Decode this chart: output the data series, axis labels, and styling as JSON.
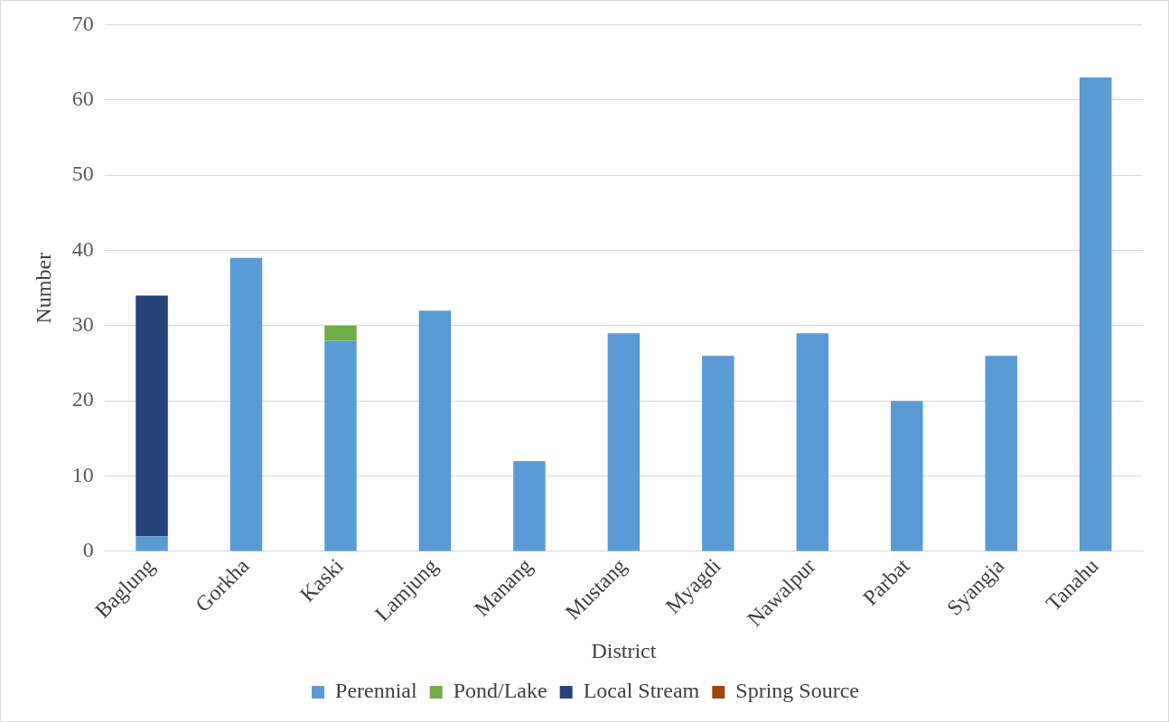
{
  "chart_data": {
    "type": "bar",
    "stacked": true,
    "xlabel": "District",
    "ylabel": "Number",
    "categories": [
      "Baglung",
      "Gorkha",
      "Kaski",
      "Lamjung",
      "Manang",
      "Mustang",
      "Myagdi",
      "Nawalpur",
      "Parbat",
      "Syangja",
      "Tanahu"
    ],
    "series": [
      {
        "name": "Perennial",
        "color": "#5b9bd5",
        "values": [
          2,
          39,
          28,
          32,
          12,
          29,
          26,
          29,
          20,
          26,
          63
        ]
      },
      {
        "name": "Pond/Lake",
        "color": "#70ad47",
        "values": [
          0,
          0,
          2,
          0,
          0,
          0,
          0,
          0,
          0,
          0,
          0
        ]
      },
      {
        "name": "Local Stream",
        "color": "#264478",
        "values": [
          32,
          0,
          0,
          0,
          0,
          0,
          0,
          0,
          0,
          0,
          0
        ]
      },
      {
        "name": "Spring Source",
        "color": "#9e480e",
        "values": [
          0,
          0,
          0,
          0,
          0,
          0,
          0,
          0,
          0,
          0,
          0
        ]
      }
    ],
    "ylim": [
      0,
      70
    ],
    "yticks": [
      0,
      10,
      20,
      30,
      40,
      50,
      60,
      70
    ],
    "grid": "y",
    "legend": "bottom"
  }
}
